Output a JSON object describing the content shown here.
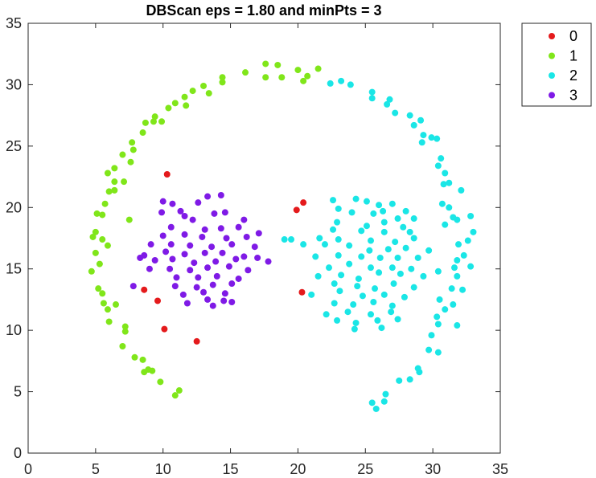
{
  "chart_data": {
    "type": "scatter",
    "title": "DBScan eps = 1.80 and minPts = 3",
    "xlabel": "",
    "ylabel": "",
    "xlim": [
      0,
      35
    ],
    "ylim": [
      0,
      35
    ],
    "xticks": [
      0,
      5,
      10,
      15,
      20,
      25,
      30,
      35
    ],
    "yticks": [
      0,
      5,
      10,
      15,
      20,
      25,
      30,
      35
    ],
    "xtick_labels": [
      "0",
      "5",
      "10",
      "15",
      "20",
      "25",
      "30",
      "35"
    ],
    "ytick_labels": [
      "0",
      "5",
      "10",
      "15",
      "20",
      "25",
      "30",
      "35"
    ],
    "grid": false,
    "legend_position": "outside-top-right",
    "series": [
      {
        "name": "0",
        "color": "#e41a1c",
        "points": [
          [
            10.3,
            22.7
          ],
          [
            8.6,
            13.3
          ],
          [
            9.6,
            12.4
          ],
          [
            10.1,
            10.1
          ],
          [
            12.5,
            9.1
          ],
          [
            19.9,
            19.8
          ],
          [
            20.4,
            20.4
          ],
          [
            20.3,
            13.1
          ]
        ]
      },
      {
        "name": "1",
        "color": "#80e61a",
        "points": [
          [
            17.6,
            31.7
          ],
          [
            18.5,
            31.6
          ],
          [
            20.0,
            31.2
          ],
          [
            21.5,
            31.3
          ],
          [
            16.1,
            31.0
          ],
          [
            17.6,
            30.6
          ],
          [
            18.8,
            30.6
          ],
          [
            20.7,
            30.7
          ],
          [
            20.4,
            30.3
          ],
          [
            14.4,
            30.6
          ],
          [
            14.4,
            30.2
          ],
          [
            13.0,
            29.9
          ],
          [
            12.2,
            29.5
          ],
          [
            11.6,
            29.0
          ],
          [
            10.9,
            28.5
          ],
          [
            11.7,
            28.3
          ],
          [
            13.4,
            29.3
          ],
          [
            10.4,
            28.1
          ],
          [
            9.4,
            27.4
          ],
          [
            9.3,
            27.0
          ],
          [
            8.7,
            26.9
          ],
          [
            9.9,
            27.0
          ],
          [
            8.5,
            26.1
          ],
          [
            7.7,
            25.3
          ],
          [
            7.8,
            24.7
          ],
          [
            7.0,
            24.3
          ],
          [
            7.6,
            23.7
          ],
          [
            6.4,
            23.2
          ],
          [
            5.9,
            22.8
          ],
          [
            7.1,
            22.1
          ],
          [
            6.4,
            22.1
          ],
          [
            6.4,
            21.4
          ],
          [
            6.0,
            21.3
          ],
          [
            5.7,
            20.3
          ],
          [
            5.1,
            19.5
          ],
          [
            5.5,
            19.4
          ],
          [
            7.5,
            19.0
          ],
          [
            5.0,
            18.0
          ],
          [
            5.5,
            17.4
          ],
          [
            4.8,
            17.6
          ],
          [
            5.9,
            16.9
          ],
          [
            5.0,
            16.3
          ],
          [
            5.3,
            15.4
          ],
          [
            4.7,
            14.8
          ],
          [
            5.2,
            13.4
          ],
          [
            5.5,
            13.0
          ],
          [
            5.6,
            12.2
          ],
          [
            6.5,
            12.1
          ],
          [
            5.9,
            11.7
          ],
          [
            6.0,
            10.7
          ],
          [
            7.2,
            10.3
          ],
          [
            7.2,
            9.9
          ],
          [
            7.0,
            8.7
          ],
          [
            7.9,
            7.8
          ],
          [
            8.5,
            7.6
          ],
          [
            8.9,
            6.8
          ],
          [
            9.2,
            6.7
          ],
          [
            8.6,
            6.6
          ],
          [
            9.8,
            5.8
          ],
          [
            11.2,
            5.1
          ],
          [
            10.9,
            4.7
          ]
        ]
      },
      {
        "name": "2",
        "color": "#1ae6e6",
        "points": [
          [
            23.2,
            30.3
          ],
          [
            23.9,
            30.0
          ],
          [
            22.4,
            30.1
          ],
          [
            25.5,
            29.4
          ],
          [
            25.5,
            28.9
          ],
          [
            26.8,
            28.8
          ],
          [
            26.6,
            28.4
          ],
          [
            27.2,
            27.7
          ],
          [
            28.3,
            27.5
          ],
          [
            29.1,
            27.1
          ],
          [
            28.6,
            26.7
          ],
          [
            29.3,
            25.9
          ],
          [
            29.9,
            25.7
          ],
          [
            30.3,
            25.6
          ],
          [
            29.2,
            25.3
          ],
          [
            30.6,
            24.0
          ],
          [
            30.4,
            23.4
          ],
          [
            30.9,
            22.8
          ],
          [
            31.2,
            22.0
          ],
          [
            30.8,
            21.9
          ],
          [
            32.1,
            21.4
          ],
          [
            30.7,
            20.3
          ],
          [
            31.2,
            20.0
          ],
          [
            31.5,
            19.2
          ],
          [
            30.9,
            18.6
          ],
          [
            31.8,
            19.0
          ],
          [
            32.8,
            19.3
          ],
          [
            33.0,
            18.0
          ],
          [
            32.6,
            17.3
          ],
          [
            31.9,
            17.0
          ],
          [
            32.3,
            16.1
          ],
          [
            31.8,
            15.7
          ],
          [
            32.8,
            15.2
          ],
          [
            31.6,
            15.1
          ],
          [
            30.4,
            14.8
          ],
          [
            31.8,
            14.4
          ],
          [
            31.4,
            13.4
          ],
          [
            32.2,
            13.3
          ],
          [
            30.5,
            12.5
          ],
          [
            31.5,
            12.1
          ],
          [
            30.9,
            11.7
          ],
          [
            30.3,
            11.1
          ],
          [
            31.8,
            10.4
          ],
          [
            30.4,
            10.5
          ],
          [
            29.9,
            9.6
          ],
          [
            30.4,
            8.2
          ],
          [
            29.7,
            8.4
          ],
          [
            28.9,
            6.9
          ],
          [
            29.0,
            6.6
          ],
          [
            28.3,
            6.0
          ],
          [
            27.5,
            5.9
          ],
          [
            26.5,
            4.8
          ],
          [
            26.4,
            4.2
          ],
          [
            25.5,
            4.1
          ],
          [
            25.8,
            3.6
          ],
          [
            22.6,
            20.6
          ],
          [
            24.3,
            20.7
          ],
          [
            25.1,
            20.5
          ],
          [
            26.0,
            20.2
          ],
          [
            27.0,
            20.3
          ],
          [
            26.3,
            19.7
          ],
          [
            28.0,
            19.7
          ],
          [
            25.6,
            19.5
          ],
          [
            24.0,
            19.6
          ],
          [
            23.0,
            19.9
          ],
          [
            28.6,
            19.1
          ],
          [
            27.4,
            19.1
          ],
          [
            22.9,
            18.8
          ],
          [
            25.1,
            18.5
          ],
          [
            26.4,
            18.8
          ],
          [
            27.8,
            18.4
          ],
          [
            22.6,
            18.2
          ],
          [
            24.7,
            18.1
          ],
          [
            26.4,
            18.0
          ],
          [
            28.3,
            18.0
          ],
          [
            21.6,
            17.5
          ],
          [
            23.0,
            17.4
          ],
          [
            25.4,
            17.3
          ],
          [
            27.2,
            17.2
          ],
          [
            28.6,
            17.5
          ],
          [
            19.0,
            17.4
          ],
          [
            19.5,
            17.4
          ],
          [
            20.4,
            17.0
          ],
          [
            22.0,
            17.0
          ],
          [
            23.8,
            16.9
          ],
          [
            25.3,
            16.5
          ],
          [
            26.7,
            16.6
          ],
          [
            28.0,
            16.7
          ],
          [
            29.7,
            16.5
          ],
          [
            21.3,
            16.0
          ],
          [
            23.0,
            16.1
          ],
          [
            24.7,
            16.0
          ],
          [
            26.1,
            15.9
          ],
          [
            27.4,
            15.9
          ],
          [
            28.9,
            15.9
          ],
          [
            22.3,
            15.1
          ],
          [
            23.8,
            15.4
          ],
          [
            25.4,
            15.1
          ],
          [
            27.0,
            15.1
          ],
          [
            28.4,
            15.0
          ],
          [
            21.5,
            14.4
          ],
          [
            23.2,
            14.5
          ],
          [
            24.5,
            14.2
          ],
          [
            26.0,
            14.7
          ],
          [
            27.6,
            14.6
          ],
          [
            29.3,
            14.4
          ],
          [
            22.7,
            13.8
          ],
          [
            24.4,
            13.6
          ],
          [
            25.7,
            13.4
          ],
          [
            27.1,
            13.8
          ],
          [
            28.6,
            13.5
          ],
          [
            21.0,
            12.9
          ],
          [
            23.1,
            13.2
          ],
          [
            24.8,
            12.8
          ],
          [
            26.4,
            12.9
          ],
          [
            27.9,
            12.7
          ],
          [
            22.7,
            12.2
          ],
          [
            24.1,
            12.1
          ],
          [
            25.6,
            12.3
          ],
          [
            27.0,
            12.0
          ],
          [
            22.1,
            11.3
          ],
          [
            23.7,
            11.5
          ],
          [
            25.4,
            11.3
          ],
          [
            26.9,
            11.5
          ],
          [
            22.9,
            10.8
          ],
          [
            24.3,
            10.6
          ],
          [
            25.9,
            10.8
          ],
          [
            27.4,
            10.9
          ],
          [
            24.2,
            10.1
          ],
          [
            26.2,
            10.2
          ]
        ]
      },
      {
        "name": "3",
        "color": "#7f1ae6",
        "points": [
          [
            10.0,
            20.5
          ],
          [
            10.7,
            20.3
          ],
          [
            12.6,
            20.4
          ],
          [
            13.3,
            20.9
          ],
          [
            14.3,
            21.0
          ],
          [
            9.9,
            19.6
          ],
          [
            11.3,
            19.7
          ],
          [
            13.8,
            19.5
          ],
          [
            14.6,
            19.6
          ],
          [
            16.0,
            19.0
          ],
          [
            11.6,
            19.3
          ],
          [
            12.2,
            19.0
          ],
          [
            10.6,
            18.4
          ],
          [
            13.1,
            18.2
          ],
          [
            14.3,
            18.3
          ],
          [
            15.6,
            18.4
          ],
          [
            17.1,
            17.9
          ],
          [
            10.0,
            17.7
          ],
          [
            11.6,
            17.8
          ],
          [
            12.9,
            17.6
          ],
          [
            14.7,
            17.5
          ],
          [
            16.2,
            17.6
          ],
          [
            9.1,
            17.0
          ],
          [
            10.6,
            17.0
          ],
          [
            12.0,
            16.9
          ],
          [
            13.6,
            16.8
          ],
          [
            15.1,
            17.0
          ],
          [
            16.8,
            16.8
          ],
          [
            8.6,
            16.1
          ],
          [
            10.2,
            16.4
          ],
          [
            11.6,
            16.2
          ],
          [
            13.1,
            16.3
          ],
          [
            14.4,
            16.3
          ],
          [
            16.0,
            16.0
          ],
          [
            17.8,
            15.6
          ],
          [
            8.3,
            15.9
          ],
          [
            9.4,
            15.7
          ],
          [
            10.7,
            15.8
          ],
          [
            12.3,
            15.5
          ],
          [
            13.9,
            15.6
          ],
          [
            15.4,
            15.8
          ],
          [
            17.0,
            15.9
          ],
          [
            9.0,
            15.0
          ],
          [
            10.5,
            15.0
          ],
          [
            12.0,
            14.9
          ],
          [
            13.3,
            15.1
          ],
          [
            14.9,
            15.2
          ],
          [
            16.3,
            14.9
          ],
          [
            11.0,
            14.3
          ],
          [
            12.6,
            14.3
          ],
          [
            14.0,
            14.4
          ],
          [
            15.6,
            14.2
          ],
          [
            7.8,
            13.6
          ],
          [
            10.9,
            13.6
          ],
          [
            12.5,
            13.5
          ],
          [
            13.7,
            13.7
          ],
          [
            15.1,
            13.8
          ],
          [
            11.5,
            12.9
          ],
          [
            13.0,
            13.1
          ],
          [
            14.6,
            13.0
          ],
          [
            13.3,
            12.5
          ],
          [
            14.5,
            12.4
          ],
          [
            11.8,
            12.2
          ],
          [
            13.7,
            12.0
          ],
          [
            15.1,
            12.3
          ]
        ]
      }
    ]
  }
}
